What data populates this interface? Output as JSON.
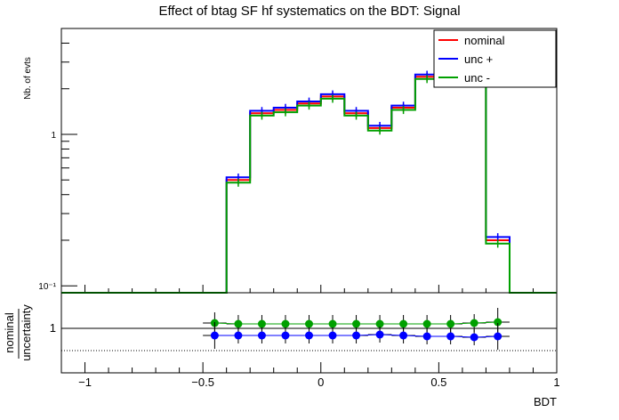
{
  "title": "Effect of btag SF hf systematics on the BDT: Signal",
  "chart_data": [
    {
      "type": "line",
      "name": "main",
      "ylabel": "Nb. of evts",
      "yscale": "log",
      "ylim": [
        0.09,
        5.0
      ],
      "y_ticks": [
        {
          "value": 0.1,
          "label": "10⁻¹"
        },
        {
          "value": 1,
          "label": "1"
        }
      ],
      "bin_edges": [
        -1.1,
        -1.0,
        -0.9,
        -0.8,
        -0.7,
        -0.6,
        -0.5,
        -0.4,
        -0.3,
        -0.2,
        -0.1,
        0.0,
        0.1,
        0.2,
        0.3,
        0.4,
        0.5,
        0.6,
        0.7,
        0.8,
        0.9,
        1.0
      ],
      "series": [
        {
          "name": "nominal",
          "color": "#ff0000",
          "values": [
            0.09,
            0.09,
            0.09,
            0.09,
            0.09,
            0.09,
            0.09,
            0.5,
            1.38,
            1.45,
            1.6,
            1.78,
            1.38,
            1.1,
            1.5,
            2.4,
            2.8,
            2.55,
            0.2,
            0.09,
            0.09
          ]
        },
        {
          "name": "unc +",
          "color": "#0000ff",
          "values": [
            0.09,
            0.09,
            0.09,
            0.09,
            0.09,
            0.09,
            0.09,
            0.52,
            1.43,
            1.5,
            1.65,
            1.84,
            1.43,
            1.14,
            1.55,
            2.48,
            2.9,
            2.64,
            0.21,
            0.09,
            0.09
          ]
        },
        {
          "name": "unc -",
          "color": "#00a000",
          "values": [
            0.09,
            0.09,
            0.09,
            0.09,
            0.09,
            0.09,
            0.09,
            0.48,
            1.33,
            1.4,
            1.55,
            1.72,
            1.33,
            1.06,
            1.45,
            2.32,
            2.7,
            2.46,
            0.19,
            0.09,
            0.09
          ]
        }
      ],
      "legend": {
        "placement": "top-right",
        "entries": [
          "nominal",
          "unc +",
          "unc -"
        ]
      }
    },
    {
      "type": "scatter",
      "name": "ratio",
      "xlabel": "BDT",
      "ylabel_top": "nominal",
      "ylabel_bottom": "uncertainty",
      "ylim": [
        0.5,
        1.4
      ],
      "y_ticks": [
        {
          "value": 1,
          "label": "1"
        }
      ],
      "dotted_line": 0.75,
      "solid_line": 1.0,
      "xlim": [
        -1.1,
        1.0
      ],
      "x_ticks": [
        {
          "value": -1,
          "label": "−1"
        },
        {
          "value": -0.5,
          "label": "−0.5"
        },
        {
          "value": 0,
          "label": "0"
        },
        {
          "value": 0.5,
          "label": "0.5"
        },
        {
          "value": 1,
          "label": "1"
        }
      ],
      "x": [
        -0.45,
        -0.35,
        -0.25,
        -0.15,
        -0.05,
        0.05,
        0.15,
        0.25,
        0.35,
        0.45,
        0.55,
        0.65,
        0.75
      ],
      "series": [
        {
          "name": "unc -",
          "color": "#00a000",
          "values": [
            1.06,
            1.05,
            1.05,
            1.05,
            1.05,
            1.05,
            1.05,
            1.05,
            1.05,
            1.05,
            1.05,
            1.06,
            1.07
          ],
          "errors": [
            0.12,
            0.1,
            0.1,
            0.1,
            0.1,
            0.1,
            0.1,
            0.1,
            0.1,
            0.1,
            0.1,
            0.1,
            0.16
          ]
        },
        {
          "name": "unc +",
          "color": "#0000ff",
          "values": [
            0.92,
            0.92,
            0.92,
            0.92,
            0.92,
            0.92,
            0.92,
            0.93,
            0.92,
            0.91,
            0.91,
            0.9,
            0.91
          ],
          "errors": [
            0.15,
            0.09,
            0.09,
            0.09,
            0.09,
            0.09,
            0.09,
            0.09,
            0.09,
            0.09,
            0.09,
            0.09,
            0.15
          ]
        }
      ]
    }
  ]
}
